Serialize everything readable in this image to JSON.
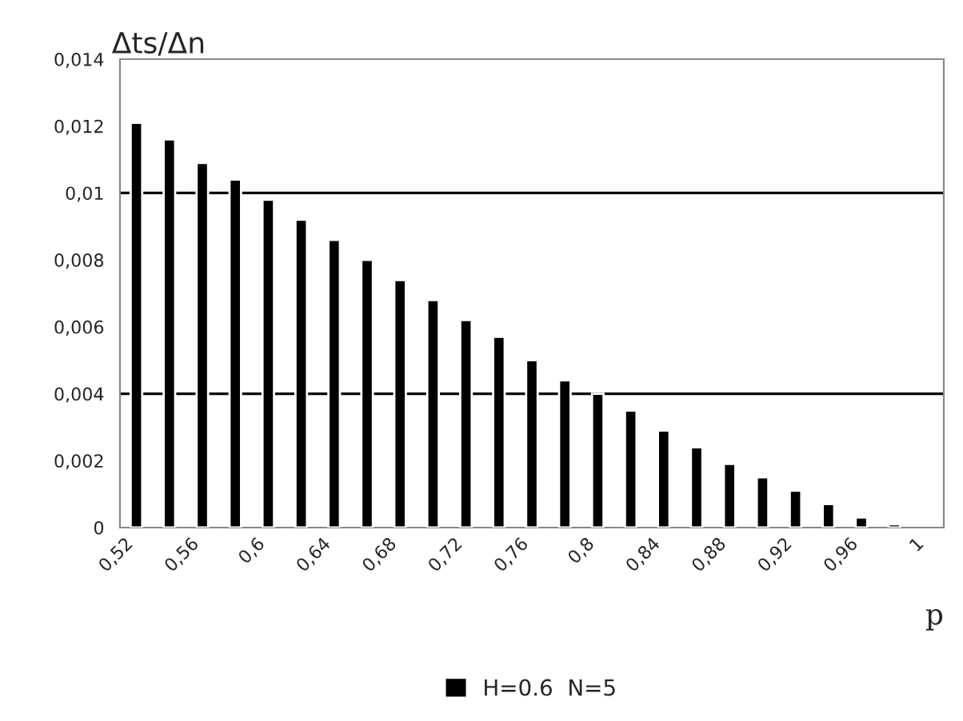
{
  "chart_data": {
    "type": "bar",
    "xlabel": "p",
    "ylabel": "Δts/Δn",
    "categories": [
      "0,52",
      null,
      "0,56",
      null,
      "0,6",
      null,
      "0,64",
      null,
      "0,68",
      null,
      "0,72",
      null,
      "0,76",
      null,
      "0,8",
      null,
      "0,84",
      null,
      "0,88",
      null,
      "0,92",
      null,
      "0,96",
      null,
      "1"
    ],
    "series": [
      {
        "name": "H=0.6  N=5",
        "color": "#000000",
        "values": [
          0.0121,
          0.0116,
          0.0109,
          0.0104,
          0.0098,
          0.0092,
          0.0086,
          0.008,
          0.0074,
          0.0068,
          0.0062,
          0.0057,
          0.005,
          0.0044,
          0.004,
          0.0035,
          0.0029,
          0.0024,
          0.0019,
          0.0015,
          0.0011,
          0.0007,
          0.0003,
          0.0001,
          null
        ]
      }
    ],
    "ylim": [
      0,
      0.014
    ],
    "yticks": [
      {
        "value": 0,
        "label": "0"
      },
      {
        "value": 0.002,
        "label": "0,002"
      },
      {
        "value": 0.004,
        "label": "0,004"
      },
      {
        "value": 0.006,
        "label": "0,006"
      },
      {
        "value": 0.008,
        "label": "0,008"
      },
      {
        "value": 0.01,
        "label": "0,01"
      },
      {
        "value": 0.012,
        "label": "0,012"
      },
      {
        "value": 0.014,
        "label": "0,014"
      }
    ],
    "ref_lines": [
      {
        "axis": "y",
        "value": 0.004,
        "color": "#000000"
      },
      {
        "axis": "y",
        "value": 0.01,
        "color": "#000000"
      }
    ],
    "grid": false,
    "legend": "bottom"
  }
}
